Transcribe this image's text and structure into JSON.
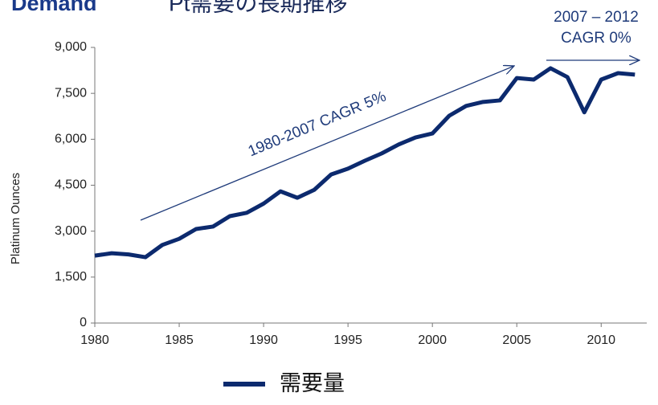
{
  "chart_data": {
    "type": "line",
    "title": "Demand",
    "subtitle": "Pt需要の長期推移",
    "y_label": "Platinum Ounces",
    "annotations": [
      "1980-2007 CAGR 5%",
      "2007 – 2012",
      "CAGR 0%"
    ],
    "x": [
      1980,
      1981,
      1982,
      1983,
      1984,
      1985,
      1986,
      1987,
      1988,
      1989,
      1990,
      1991,
      1992,
      1993,
      1994,
      1995,
      1996,
      1997,
      1998,
      1999,
      2000,
      2001,
      2002,
      2003,
      2004,
      2005,
      2006,
      2007,
      2008,
      2009,
      2010,
      2011,
      2012
    ],
    "series": [
      {
        "name": "需要量",
        "color": "#0c2a6e",
        "values": [
          2200,
          2280,
          2240,
          2150,
          2550,
          2750,
          3070,
          3150,
          3490,
          3600,
          3900,
          4300,
          4090,
          4350,
          4850,
          5040,
          5300,
          5540,
          5830,
          6060,
          6190,
          6770,
          7090,
          7220,
          7270,
          8000,
          7950,
          8320,
          8030,
          6880,
          7950,
          8160,
          8110
        ]
      }
    ],
    "xlim": [
      1980,
      2012.7
    ],
    "xticks": [
      1980,
      1985,
      1990,
      1995,
      2000,
      2005,
      2010
    ],
    "ylim": [
      0,
      9000
    ],
    "yticks": [
      0,
      {
        "value": 1500,
        "label": "1,500"
      },
      {
        "value": 3000,
        "label": "3,000"
      },
      {
        "value": 4500,
        "label": "4,500"
      },
      {
        "value": 6000,
        "label": "6,000"
      },
      {
        "value": 7500,
        "label": "7,500"
      },
      {
        "value": 9000,
        "label": "9,000"
      }
    ],
    "grid": false
  }
}
